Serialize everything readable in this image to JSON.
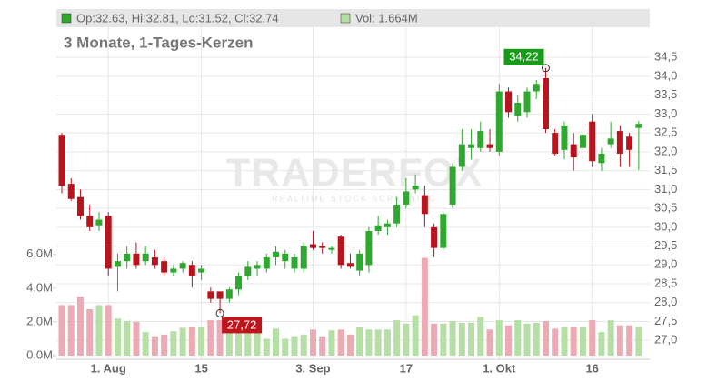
{
  "chart_data": {
    "type": "candlestick",
    "subtitle": "3 Monate, 1-Tages-Kerzen",
    "ohlc_label": "Op:32.63, Hi:32.81, Lo:31.52, Cl:32.74",
    "volume_label": "Vol: 1.664M",
    "watermark": "TRADERFOX",
    "watermark_sub": "REALTIME STOCK SCREENING",
    "up_color": "#2ea82e",
    "down_color": "#b8141e",
    "volume_up_color": "#b5dfa5",
    "volume_down_color": "#ecaab4",
    "grid": true,
    "categories": [
      null,
      null,
      null,
      null,
      null,
      "1. Aug",
      null,
      null,
      null,
      null,
      null,
      null,
      null,
      null,
      null,
      "15",
      null,
      null,
      null,
      null,
      null,
      null,
      null,
      null,
      null,
      null,
      null,
      "3. Sep",
      null,
      null,
      null,
      null,
      null,
      null,
      null,
      null,
      null,
      "17",
      null,
      null,
      null,
      null,
      null,
      null,
      null,
      null,
      null,
      "1. Okt",
      null,
      null,
      null,
      null,
      null,
      null,
      null,
      null,
      null,
      "16",
      null,
      null,
      null,
      null,
      null
    ],
    "open": [
      32.45,
      31.15,
      30.8,
      30.3,
      30.05,
      30.3,
      28.95,
      29.1,
      29.3,
      29.1,
      29.2,
      29.1,
      28.8,
      28.9,
      29.0,
      28.8,
      28.3,
      28.3,
      28.1,
      28.35,
      28.7,
      28.9,
      28.9,
      29.2,
      29.1,
      28.9,
      28.9,
      29.55,
      29.5,
      29.4,
      29.75,
      29.05,
      28.85,
      29.0,
      29.9,
      30.0,
      30.1,
      30.6,
      31.0,
      30.85,
      30.0,
      29.45,
      30.6,
      31.6,
      32.1,
      32.1,
      32.2,
      32.0,
      33.6,
      32.95,
      33.05,
      33.6,
      33.95,
      32.5,
      32.05,
      32.2,
      32.1,
      32.8,
      31.7,
      32.2,
      32.55,
      32.4,
      32.63
    ],
    "high": [
      32.5,
      31.3,
      31.0,
      30.6,
      30.4,
      30.4,
      29.3,
      29.5,
      29.6,
      29.5,
      29.4,
      29.2,
      29.0,
      29.1,
      29.1,
      29.0,
      28.4,
      28.3,
      28.4,
      28.8,
      29.1,
      29.1,
      29.3,
      29.5,
      29.4,
      29.3,
      29.6,
      29.9,
      29.6,
      29.5,
      29.8,
      29.3,
      29.4,
      30.0,
      30.3,
      30.2,
      30.8,
      31.3,
      31.4,
      31.1,
      30.1,
      30.4,
      31.7,
      32.6,
      32.6,
      32.8,
      32.6,
      33.8,
      33.7,
      33.5,
      33.7,
      33.9,
      34.22,
      32.6,
      32.8,
      32.5,
      32.6,
      33.0,
      32.1,
      32.8,
      32.7,
      32.5,
      32.81
    ],
    "low": [
      30.9,
      30.7,
      30.2,
      29.9,
      29.9,
      28.7,
      28.3,
      28.9,
      28.9,
      29.0,
      28.9,
      28.7,
      28.7,
      28.8,
      28.4,
      28.6,
      28.0,
      27.72,
      28.0,
      28.2,
      28.6,
      28.7,
      28.8,
      29.0,
      28.9,
      28.8,
      28.8,
      29.4,
      29.3,
      29.3,
      28.9,
      28.9,
      28.7,
      28.8,
      29.8,
      29.8,
      30.0,
      30.5,
      30.9,
      30.0,
      29.2,
      29.4,
      30.5,
      31.5,
      31.8,
      32.0,
      32.0,
      31.9,
      32.9,
      32.8,
      32.9,
      33.4,
      32.5,
      31.9,
      31.8,
      31.5,
      31.8,
      31.6,
      31.5,
      32.1,
      31.6,
      31.6,
      31.52
    ],
    "close": [
      31.1,
      30.75,
      30.3,
      30.0,
      30.2,
      28.9,
      29.1,
      29.3,
      29.0,
      29.3,
      29.0,
      28.8,
      28.9,
      29.05,
      28.7,
      28.9,
      28.1,
      28.1,
      28.35,
      28.7,
      28.95,
      29.0,
      29.2,
      29.35,
      29.3,
      29.2,
      29.5,
      29.45,
      29.45,
      29.45,
      29.0,
      28.95,
      29.3,
      29.9,
      30.05,
      30.1,
      30.6,
      30.95,
      31.1,
      30.35,
      29.45,
      30.35,
      31.6,
      32.2,
      32.2,
      32.55,
      32.1,
      33.6,
      33.05,
      33.3,
      33.6,
      33.8,
      32.6,
      31.95,
      32.7,
      31.85,
      32.45,
      31.75,
      31.95,
      32.35,
      31.95,
      32.05,
      32.74
    ],
    "volume": [
      3.0,
      3.0,
      3.5,
      2.75,
      3.0,
      3.0,
      2.2,
      2.05,
      2.0,
      1.4,
      1.15,
      1.25,
      1.45,
      1.65,
      1.7,
      1.7,
      2.1,
      2.1,
      2.1,
      1.55,
      1.55,
      1.6,
      1.0,
      1.6,
      1.0,
      1.15,
      1.25,
      1.55,
      1.15,
      1.5,
      1.55,
      1.25,
      1.7,
      1.55,
      1.55,
      1.55,
      2.1,
      1.9,
      2.4,
      5.8,
      1.9,
      1.9,
      2.05,
      1.95,
      1.95,
      2.3,
      1.55,
      2.1,
      1.8,
      2.1,
      1.9,
      1.95,
      2.05,
      1.6,
      1.7,
      1.7,
      1.7,
      2.1,
      1.4,
      2.1,
      1.8,
      1.8,
      1.7
    ],
    "ylim": [
      26.5,
      35.3
    ],
    "yticks": [
      {
        "value": 27.0,
        "label": "27,0"
      },
      {
        "value": 27.5,
        "label": "27,5"
      },
      {
        "value": 28.0,
        "label": "28,0"
      },
      {
        "value": 28.5,
        "label": "28,5"
      },
      {
        "value": 29.0,
        "label": "29,0"
      },
      {
        "value": 29.5,
        "label": "29,5"
      },
      {
        "value": 30.0,
        "label": "30,0"
      },
      {
        "value": 30.5,
        "label": "30,5"
      },
      {
        "value": 31.0,
        "label": "31,0"
      },
      {
        "value": 31.5,
        "label": "31,5"
      },
      {
        "value": 32.0,
        "label": "32,0"
      },
      {
        "value": 32.5,
        "label": "32,5"
      },
      {
        "value": 33.0,
        "label": "33,0"
      },
      {
        "value": 33.5,
        "label": "33,5"
      },
      {
        "value": 34.0,
        "label": "34,0"
      },
      {
        "value": 34.5,
        "label": "34,5"
      }
    ],
    "y2lim": [
      0,
      7.5
    ],
    "y2ticks": [
      {
        "value": 0,
        "label": "0,0M"
      },
      {
        "value": 2,
        "label": "2,0M"
      },
      {
        "value": 4,
        "label": "4,0M"
      },
      {
        "value": 6,
        "label": "6,0M"
      }
    ],
    "annotations": [
      {
        "text": "34,22",
        "value": 34.22,
        "kind": "high"
      },
      {
        "text": "27,72",
        "value": 27.72,
        "kind": "low"
      }
    ]
  }
}
